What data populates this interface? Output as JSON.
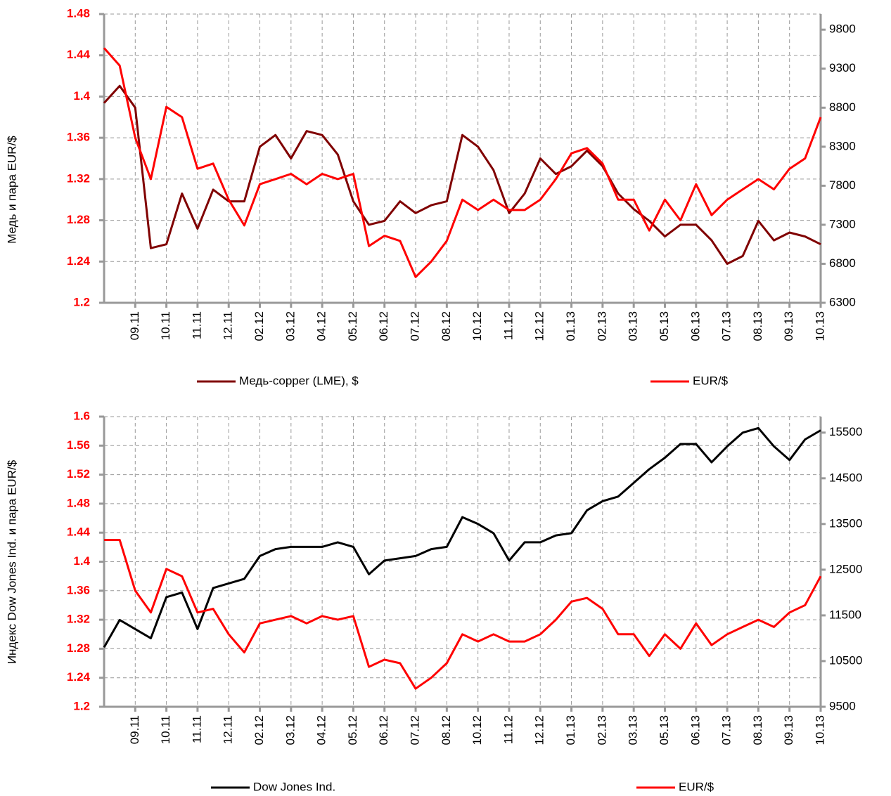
{
  "chart_data": [
    {
      "type": "line",
      "ylabel": "Медь и пара EUR/$",
      "x": [
        0,
        0.5,
        1,
        1.5,
        2,
        2.5,
        3,
        3.5,
        4,
        4.5,
        5,
        5.5,
        6,
        6.5,
        7,
        7.5,
        8,
        8.5,
        9,
        9.5,
        10,
        10.5,
        11,
        11.5,
        12,
        12.5,
        13,
        13.5,
        14,
        14.5,
        15,
        15.5,
        16,
        16.5,
        17,
        17.5,
        18,
        18.5,
        19,
        19.5,
        20,
        20.5,
        21,
        21.5,
        22,
        22.5,
        23
      ],
      "xlim": [
        0,
        23
      ],
      "xticks": [
        {
          "value": 1,
          "label": "09.11"
        },
        {
          "value": 2,
          "label": "10.11"
        },
        {
          "value": 3,
          "label": "11.11"
        },
        {
          "value": 4,
          "label": "12.11"
        },
        {
          "value": 5,
          "label": "02.12"
        },
        {
          "value": 6,
          "label": "03.12"
        },
        {
          "value": 7,
          "label": "04.12"
        },
        {
          "value": 8,
          "label": "05.12"
        },
        {
          "value": 9,
          "label": "06.12"
        },
        {
          "value": 10,
          "label": "07.12"
        },
        {
          "value": 11,
          "label": "08.12"
        },
        {
          "value": 12,
          "label": "10.12"
        },
        {
          "value": 13,
          "label": "11.12"
        },
        {
          "value": 14,
          "label": "12.12"
        },
        {
          "value": 15,
          "label": "01.13"
        },
        {
          "value": 16,
          "label": "02.13"
        },
        {
          "value": 17,
          "label": "03.13"
        },
        {
          "value": 18,
          "label": "05.13"
        },
        {
          "value": 19,
          "label": "06.13"
        },
        {
          "value": 20,
          "label": "07.13"
        },
        {
          "value": 21,
          "label": "08.13"
        },
        {
          "value": 22,
          "label": "09.13"
        },
        {
          "value": 23,
          "label": "10.13"
        }
      ],
      "ylim": [
        1.2,
        1.48
      ],
      "yticks": [
        1.2,
        1.24,
        1.28,
        1.32,
        1.36,
        1.4,
        1.44,
        1.48
      ],
      "y2lim": [
        6300,
        10000
      ],
      "y2ticks": [
        6300,
        6800,
        7300,
        7800,
        8300,
        8800,
        9300,
        9800
      ],
      "grid": true,
      "series": [
        {
          "name": "Медь-copper (LME), $",
          "color": "#800000",
          "axis": "y2",
          "values": [
            8860,
            9080,
            8800,
            7000,
            7050,
            7700,
            7250,
            7750,
            7600,
            7600,
            8300,
            8450,
            8150,
            8500,
            8450,
            8200,
            7600,
            7300,
            7350,
            7600,
            7450,
            7550,
            7600,
            8450,
            8300,
            8000,
            7450,
            7700,
            8150,
            7950,
            8050,
            8250,
            8050,
            7700,
            7500,
            7350,
            7150,
            7300,
            7300,
            7100,
            6800,
            6900,
            7350,
            7100,
            7200,
            7150,
            7050
          ]
        },
        {
          "name": "EUR/$",
          "color": "#ff0000",
          "values": [
            1.447,
            1.43,
            1.36,
            1.32,
            1.39,
            1.38,
            1.33,
            1.335,
            1.3,
            1.275,
            1.315,
            1.32,
            1.325,
            1.315,
            1.325,
            1.32,
            1.325,
            1.255,
            1.265,
            1.26,
            1.225,
            1.24,
            1.26,
            1.3,
            1.29,
            1.3,
            1.29,
            1.29,
            1.3,
            1.32,
            1.345,
            1.35,
            1.335,
            1.3,
            1.3,
            1.27,
            1.3,
            1.28,
            1.315,
            1.285,
            1.3,
            1.31,
            1.32,
            1.31,
            1.33,
            1.34,
            1.38
          ]
        }
      ]
    },
    {
      "type": "line",
      "ylabel": "Индекс Dow Jones Ind. и пара EUR/$",
      "x": [
        0,
        0.5,
        1,
        1.5,
        2,
        2.5,
        3,
        3.5,
        4,
        4.5,
        5,
        5.5,
        6,
        6.5,
        7,
        7.5,
        8,
        8.5,
        9,
        9.5,
        10,
        10.5,
        11,
        11.5,
        12,
        12.5,
        13,
        13.5,
        14,
        14.5,
        15,
        15.5,
        16,
        16.5,
        17,
        17.5,
        18,
        18.5,
        19,
        19.5,
        20,
        20.5,
        21,
        21.5,
        22,
        22.5,
        23
      ],
      "xlim": [
        0,
        23
      ],
      "xticks": [
        {
          "value": 1,
          "label": "09.11"
        },
        {
          "value": 2,
          "label": "10.11"
        },
        {
          "value": 3,
          "label": "11.11"
        },
        {
          "value": 4,
          "label": "12.11"
        },
        {
          "value": 5,
          "label": "02.12"
        },
        {
          "value": 6,
          "label": "03.12"
        },
        {
          "value": 7,
          "label": "04.12"
        },
        {
          "value": 8,
          "label": "05.12"
        },
        {
          "value": 9,
          "label": "06.12"
        },
        {
          "value": 10,
          "label": "07.12"
        },
        {
          "value": 11,
          "label": "08.12"
        },
        {
          "value": 12,
          "label": "10.12"
        },
        {
          "value": 13,
          "label": "11.12"
        },
        {
          "value": 14,
          "label": "12.12"
        },
        {
          "value": 15,
          "label": "01.13"
        },
        {
          "value": 16,
          "label": "02.13"
        },
        {
          "value": 17,
          "label": "03.13"
        },
        {
          "value": 18,
          "label": "05.13"
        },
        {
          "value": 19,
          "label": "06.13"
        },
        {
          "value": 20,
          "label": "07.13"
        },
        {
          "value": 21,
          "label": "08.13"
        },
        {
          "value": 22,
          "label": "09.13"
        },
        {
          "value": 23,
          "label": "10.13"
        }
      ],
      "ylim": [
        1.2,
        1.6
      ],
      "yticks": [
        1.2,
        1.24,
        1.28,
        1.32,
        1.36,
        1.4,
        1.44,
        1.48,
        1.52,
        1.56,
        1.6
      ],
      "y2lim": [
        9500,
        15850
      ],
      "y2ticks": [
        9500,
        10500,
        11500,
        12500,
        13500,
        14500,
        15500
      ],
      "grid": true,
      "series": [
        {
          "name": "Dow Jones Ind.",
          "color": "#000000",
          "axis": "y2",
          "values": [
            10800,
            11400,
            11200,
            11000,
            11900,
            12000,
            11200,
            12100,
            12200,
            12300,
            12800,
            12950,
            13000,
            13000,
            13000,
            13100,
            13000,
            12400,
            12700,
            12750,
            12800,
            12950,
            13000,
            13650,
            13500,
            13300,
            12700,
            13100,
            13100,
            13250,
            13300,
            13800,
            14000,
            14100,
            14400,
            14700,
            14950,
            15250,
            15250,
            14850,
            15200,
            15500,
            15600,
            15200,
            14900,
            15350,
            15550
          ]
        },
        {
          "name": "EUR/$",
          "color": "#ff0000",
          "values": [
            1.43,
            1.43,
            1.36,
            1.33,
            1.39,
            1.38,
            1.33,
            1.335,
            1.3,
            1.275,
            1.315,
            1.32,
            1.325,
            1.315,
            1.325,
            1.32,
            1.325,
            1.255,
            1.265,
            1.26,
            1.225,
            1.24,
            1.26,
            1.3,
            1.29,
            1.3,
            1.29,
            1.29,
            1.3,
            1.32,
            1.345,
            1.35,
            1.335,
            1.3,
            1.3,
            1.27,
            1.3,
            1.28,
            1.315,
            1.285,
            1.3,
            1.31,
            1.32,
            1.31,
            1.33,
            1.34,
            1.38
          ]
        }
      ]
    }
  ]
}
